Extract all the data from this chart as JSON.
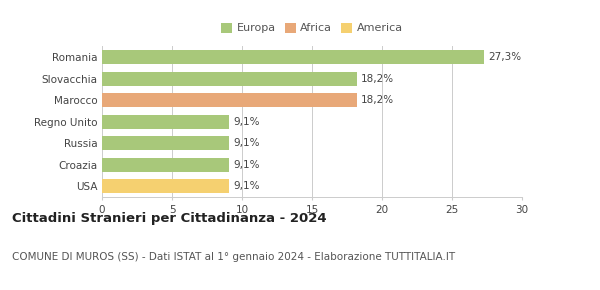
{
  "categories": [
    "Romania",
    "Slovacchia",
    "Marocco",
    "Regno Unito",
    "Russia",
    "Croazia",
    "USA"
  ],
  "values": [
    27.3,
    18.2,
    18.2,
    9.1,
    9.1,
    9.1,
    9.1
  ],
  "labels": [
    "27,3%",
    "18,2%",
    "18,2%",
    "9,1%",
    "9,1%",
    "9,1%",
    "9,1%"
  ],
  "colors": [
    "#a8c87a",
    "#a8c87a",
    "#e8a878",
    "#a8c87a",
    "#a8c87a",
    "#a8c87a",
    "#f5d070"
  ],
  "legend": [
    {
      "label": "Europa",
      "color": "#a8c87a"
    },
    {
      "label": "Africa",
      "color": "#e8a878"
    },
    {
      "label": "America",
      "color": "#f5d070"
    }
  ],
  "xlim": [
    0,
    30
  ],
  "xticks": [
    0,
    5,
    10,
    15,
    20,
    25,
    30
  ],
  "title": "Cittadini Stranieri per Cittadinanza - 2024",
  "subtitle": "COMUNE DI MUROS (SS) - Dati ISTAT al 1° gennaio 2024 - Elaborazione TUTTITALIA.IT",
  "title_fontsize": 9.5,
  "subtitle_fontsize": 7.5,
  "bar_height": 0.65,
  "background_color": "#ffffff",
  "grid_color": "#cccccc",
  "label_fontsize": 7.5,
  "tick_fontsize": 7.5
}
